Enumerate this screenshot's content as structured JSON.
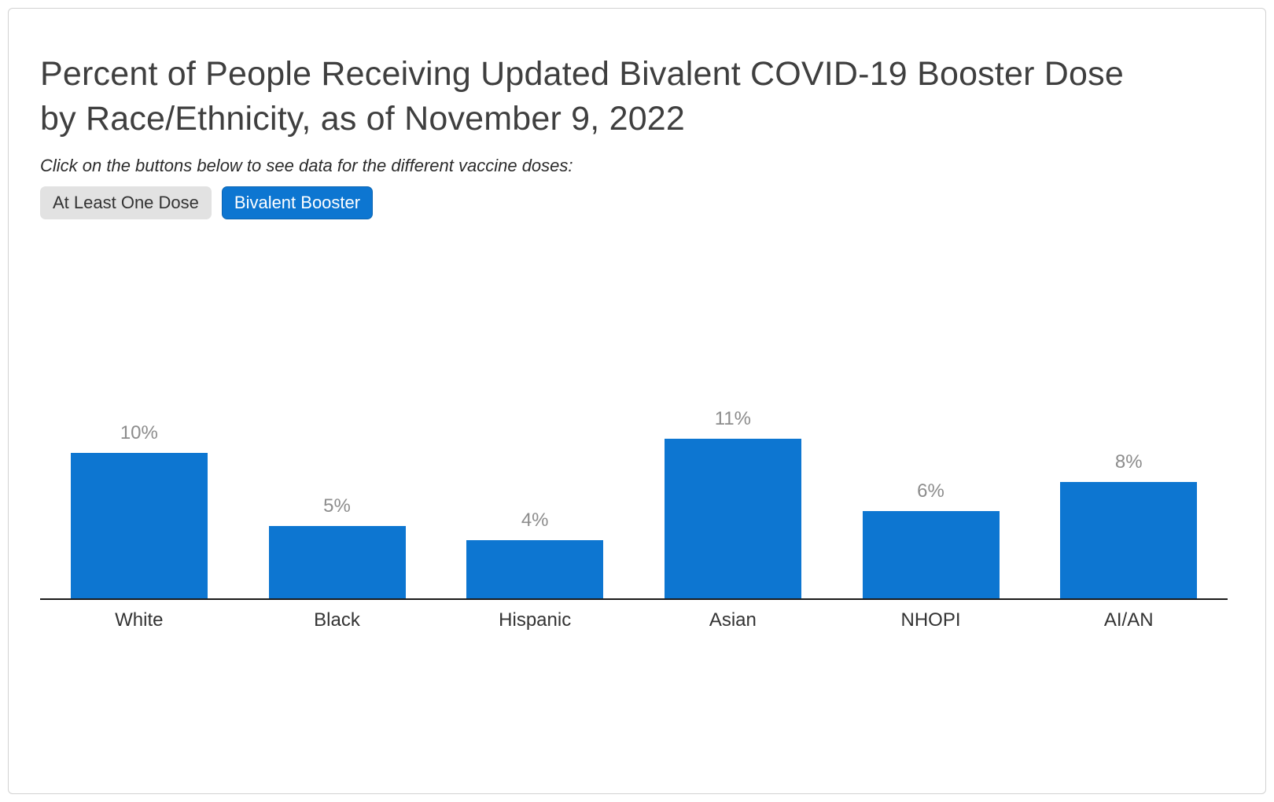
{
  "chart_data": {
    "type": "bar",
    "title_line1": "Percent of People Receiving Updated Bivalent COVID-19 Booster Dose",
    "title_line2": "by Race/Ethnicity, as of November 9, 2022",
    "subtitle": "Click on the buttons below to see data for the different vaccine doses:",
    "categories": [
      "White",
      "Black",
      "Hispanic",
      "Asian",
      "NHOPI",
      "AI/AN"
    ],
    "values": [
      10,
      5,
      4,
      11,
      6,
      8
    ],
    "value_labels": [
      "10%",
      "5%",
      "4%",
      "11%",
      "6%",
      "8%"
    ],
    "bar_color": "#0d76d1",
    "ylabel": "",
    "xlabel": "",
    "ylim": [
      0,
      12
    ],
    "grid": "off",
    "legend": "none"
  },
  "buttons": {
    "at_least_one_dose": {
      "label": "At Least One Dose",
      "active": false
    },
    "bivalent_booster": {
      "label": "Bivalent Booster",
      "active": true
    }
  },
  "colors": {
    "accent_blue": "#0d76d1",
    "inactive_button_bg": "#e2e2e2",
    "title_text": "#3f3f3f",
    "value_label_text": "#8c8c8c"
  }
}
